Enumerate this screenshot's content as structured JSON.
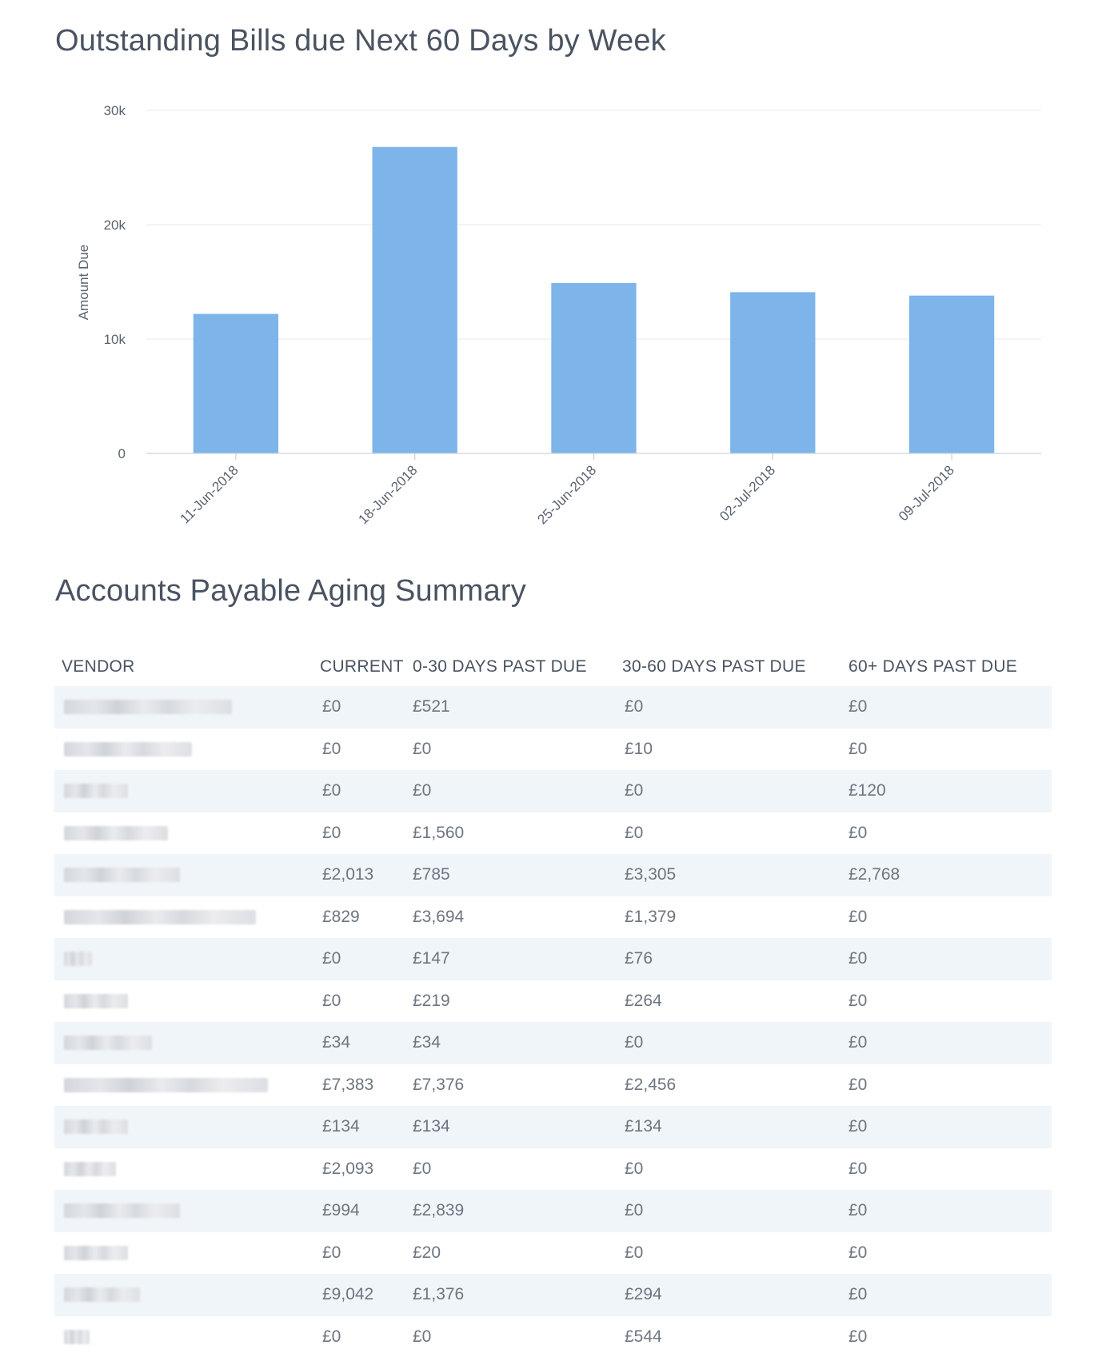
{
  "chart_title": "Outstanding Bills due Next 60 Days by Week",
  "table_title": "Accounts Payable Aging Summary",
  "chart_data": {
    "type": "bar",
    "title": "Outstanding Bills due Next 60 Days by Week",
    "ylabel": "Amount Due",
    "xlabel": "",
    "categories": [
      "11-Jun-2018",
      "18-Jun-2018",
      "25-Jun-2018",
      "02-Jul-2018",
      "09-Jul-2018"
    ],
    "values": [
      12200,
      26800,
      14900,
      14100,
      13800
    ],
    "ylim": [
      0,
      30000
    ],
    "yticks": [
      0,
      10000,
      20000,
      30000
    ],
    "ytick_labels": [
      "0",
      "10k",
      "20k",
      "30k"
    ],
    "grid": true,
    "bar_color": "#7db4ea"
  },
  "table": {
    "columns": [
      "VENDOR",
      "CURRENT",
      "0-30 DAYS PAST DUE",
      "30-60 DAYS PAST DUE",
      "60+ DAYS PAST DUE"
    ],
    "rows": [
      {
        "current": "£0",
        "d0_30": "£521",
        "d30_60": "£0",
        "d60": "£0"
      },
      {
        "current": "£0",
        "d0_30": "£0",
        "d30_60": "£10",
        "d60": "£0"
      },
      {
        "current": "£0",
        "d0_30": "£0",
        "d30_60": "£0",
        "d60": "£120"
      },
      {
        "current": "£0",
        "d0_30": "£1,560",
        "d30_60": "£0",
        "d60": "£0"
      },
      {
        "current": "£2,013",
        "d0_30": "£785",
        "d30_60": "£3,305",
        "d60": "£2,768"
      },
      {
        "current": "£829",
        "d0_30": "£3,694",
        "d30_60": "£1,379",
        "d60": "£0"
      },
      {
        "current": "£0",
        "d0_30": "£147",
        "d30_60": "£76",
        "d60": "£0"
      },
      {
        "current": "£0",
        "d0_30": "£219",
        "d30_60": "£264",
        "d60": "£0"
      },
      {
        "current": "£34",
        "d0_30": "£34",
        "d30_60": "£0",
        "d60": "£0"
      },
      {
        "current": "£7,383",
        "d0_30": "£7,376",
        "d30_60": "£2,456",
        "d60": "£0"
      },
      {
        "current": "£134",
        "d0_30": "£134",
        "d30_60": "£134",
        "d60": "£0"
      },
      {
        "current": "£2,093",
        "d0_30": "£0",
        "d30_60": "£0",
        "d60": "£0"
      },
      {
        "current": "£994",
        "d0_30": "£2,839",
        "d30_60": "£0",
        "d60": "£0"
      },
      {
        "current": "£0",
        "d0_30": "£20",
        "d30_60": "£0",
        "d60": "£0"
      },
      {
        "current": "£9,042",
        "d0_30": "£1,376",
        "d30_60": "£294",
        "d60": "£0"
      },
      {
        "current": "£0",
        "d0_30": "£0",
        "d30_60": "£544",
        "d60": "£0"
      }
    ]
  }
}
